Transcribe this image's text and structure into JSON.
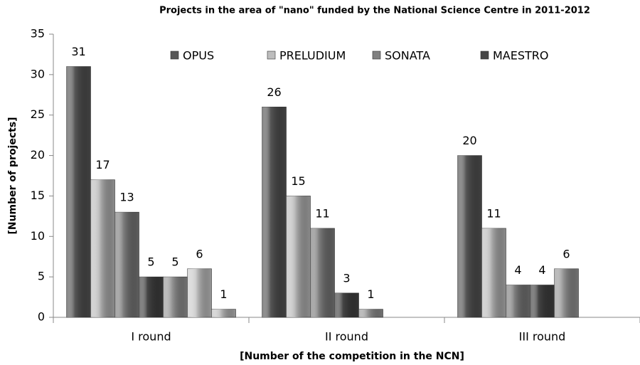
{
  "chart_data": {
    "type": "bar",
    "title": "Projects in the area of \"nano\" funded by the National Science Centre in 2011-2012",
    "x_label": "[Number of the competition in the NCN]",
    "y_label": "[Number of projects]",
    "categories": [
      "I round",
      "II round",
      "III round"
    ],
    "series": [
      {
        "name": "OPUS",
        "color": "#575757",
        "values": [
          31,
          26,
          20
        ]
      },
      {
        "name": "PRELUDIUM",
        "color": "#bdbdbd",
        "values": [
          17,
          15,
          11
        ]
      },
      {
        "name": "SONATA",
        "color": "#808080",
        "values": [
          13,
          11,
          4
        ]
      },
      {
        "name": "MAESTRO",
        "color": "#454545",
        "values": [
          5,
          3,
          4
        ]
      },
      {
        "color": "#9a9a9a",
        "values": [
          5,
          1,
          6
        ]
      },
      {
        "color": "#cccccc",
        "values": [
          6,
          null,
          null
        ]
      },
      {
        "color": "#c4c4c4",
        "values": [
          1,
          null,
          null
        ]
      }
    ],
    "ylim": [
      0,
      35
    ],
    "yticks": [
      0,
      5,
      10,
      15,
      20,
      25,
      30,
      35
    ],
    "grid": false,
    "legend": "top"
  }
}
